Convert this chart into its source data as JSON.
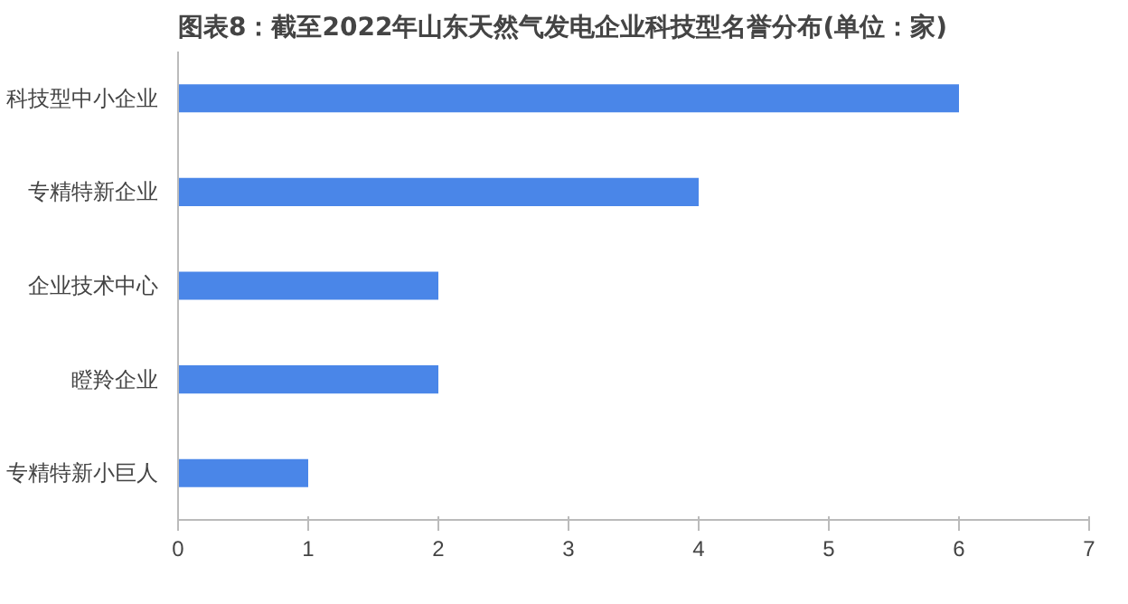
{
  "chart_data": {
    "type": "bar",
    "orientation": "horizontal",
    "title": "图表8：截至2022年山东天然气发电企业科技型名誉分布(单位：家)",
    "categories": [
      "科技型中小企业",
      "专精特新企业",
      "企业技术中心",
      "瞪羚企业",
      "专精特新小巨人"
    ],
    "values": [
      6,
      4,
      2,
      2,
      1
    ],
    "color": "#4a86e8",
    "xlim": [
      0,
      7
    ],
    "xticks": [
      0,
      1,
      2,
      3,
      4,
      5,
      6,
      7
    ],
    "grid": false
  }
}
